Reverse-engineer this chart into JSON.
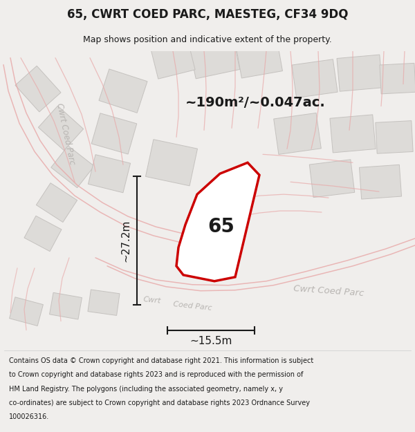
{
  "title": "65, CWRT COED PARC, MAESTEG, CF34 9DQ",
  "subtitle": "Map shows position and indicative extent of the property.",
  "area_text": "~190m²/~0.047ac.",
  "dim_width": "~15.5m",
  "dim_height": "~27.2m",
  "property_label": "65",
  "footer_lines": [
    "Contains OS data © Crown copyright and database right 2021. This information is subject",
    "to Crown copyright and database rights 2023 and is reproduced with the permission of",
    "HM Land Registry. The polygons (including the associated geometry, namely x, y",
    "co-ordinates) are subject to Crown copyright and database rights 2023 Ordnance Survey",
    "100026316."
  ],
  "bg_color": "#f0eeec",
  "map_bg": "#f7f5f3",
  "building_fill": "#dddbd8",
  "building_edge": "#c5c2bf",
  "road_line_color": "#e8a8a8",
  "property_fill": "#ffffff",
  "property_edge": "#cc0000",
  "text_color": "#1a1a1a",
  "road_label_color": "#b8b5b2",
  "figsize": [
    6.0,
    6.25
  ],
  "dpi": 100
}
